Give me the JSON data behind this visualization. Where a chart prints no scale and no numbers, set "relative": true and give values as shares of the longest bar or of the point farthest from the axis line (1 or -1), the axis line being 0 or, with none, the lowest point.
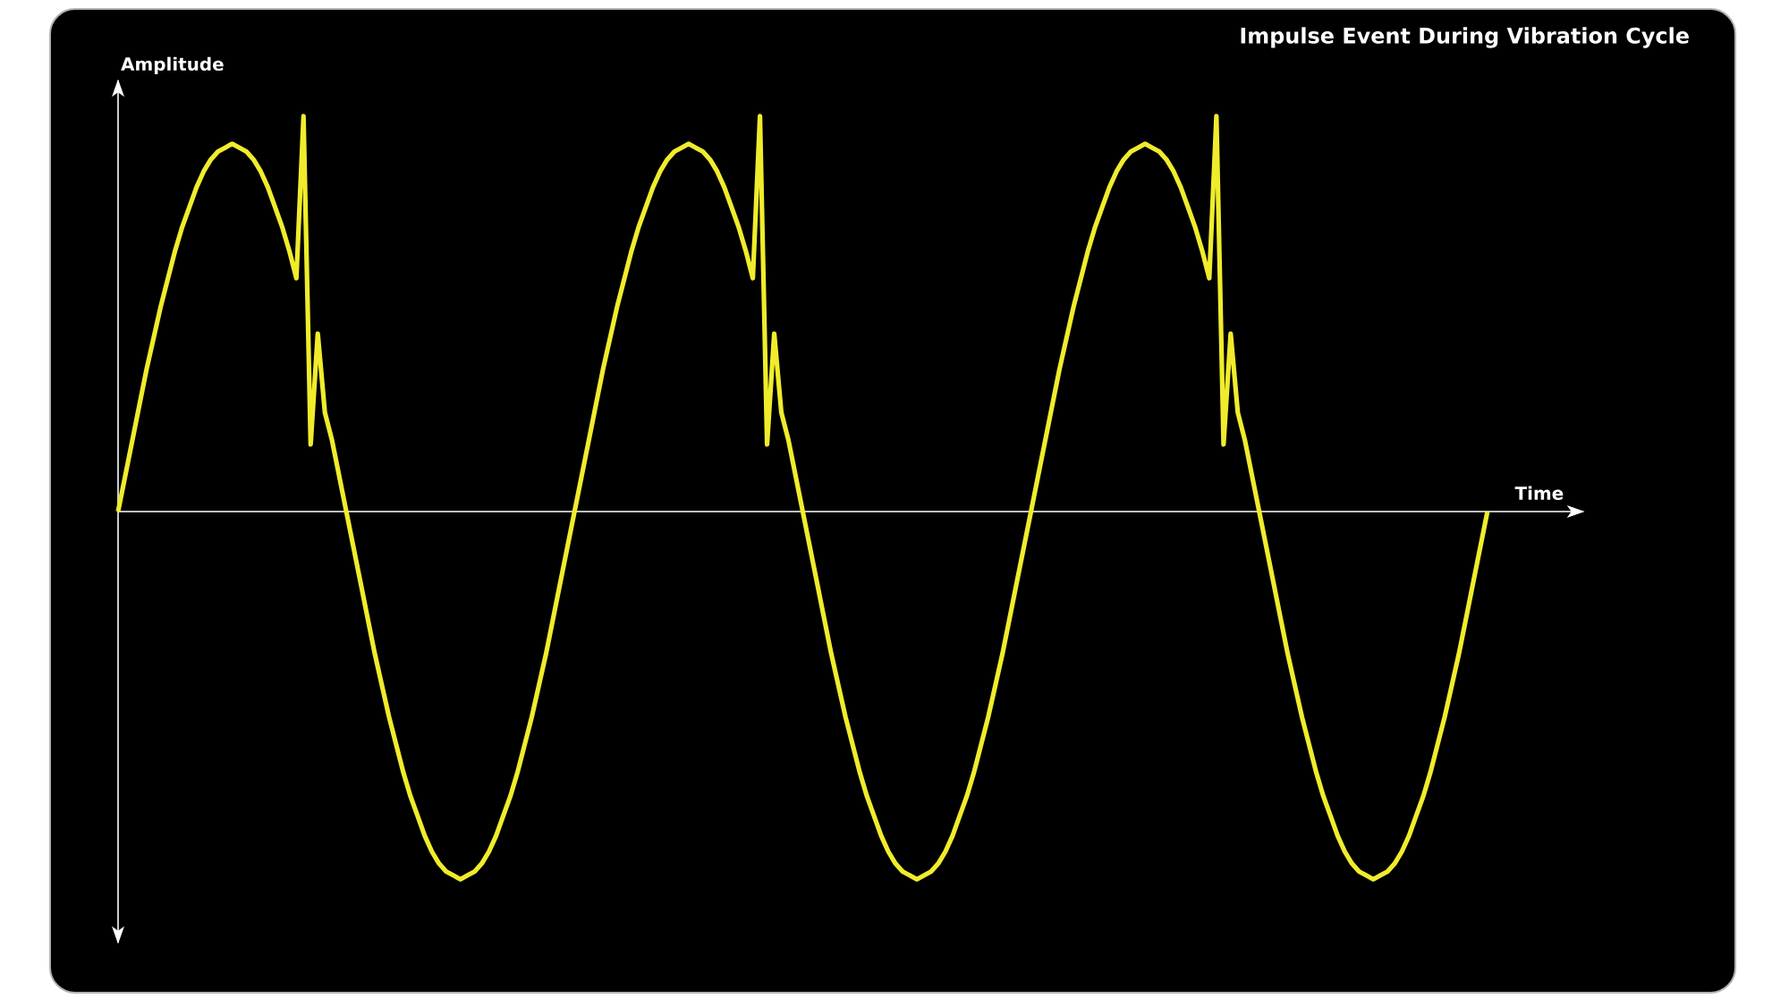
{
  "chart_data": {
    "type": "line",
    "relative": true,
    "title": "Impulse Event During Vibration Cycle",
    "xlabel": "Time",
    "ylabel": "Amplitude",
    "color": "#f0ec2c",
    "categories": [
      null,
      null,
      null,
      null,
      null,
      null,
      null,
      null,
      null,
      null,
      null,
      null,
      null,
      null,
      null,
      null,
      null,
      null,
      null,
      null,
      null,
      null,
      null,
      null,
      null,
      null,
      null,
      null,
      null,
      null,
      null,
      null,
      null,
      null,
      null,
      null,
      null,
      null,
      null,
      null,
      null,
      null,
      null,
      null,
      null,
      null,
      null,
      null,
      null,
      null,
      null,
      null,
      null,
      null,
      null,
      null,
      null,
      null,
      null,
      null,
      null,
      null,
      null,
      null,
      null,
      null,
      null,
      null,
      null,
      null,
      null,
      null,
      null,
      null,
      null,
      null,
      null,
      null,
      null,
      null,
      null,
      null,
      null,
      null,
      null,
      null,
      null,
      null,
      null,
      null,
      null,
      null,
      null,
      null,
      null,
      null,
      null,
      null,
      null,
      null,
      null,
      null,
      null,
      null,
      null,
      null,
      null,
      null,
      null,
      null,
      null,
      null,
      null,
      null,
      null,
      null,
      null,
      null,
      null,
      null,
      null,
      null,
      null,
      null,
      null,
      null,
      null,
      null,
      null,
      null,
      null,
      null,
      null,
      null,
      null,
      null,
      null,
      null,
      null,
      null,
      null,
      null,
      null,
      null,
      null,
      null,
      null,
      null,
      null,
      null,
      null,
      null,
      null,
      null,
      null,
      null,
      null,
      null,
      null,
      null,
      null,
      null,
      null,
      null,
      null,
      null,
      null,
      null,
      null,
      null,
      null,
      null,
      null,
      null,
      null,
      null,
      null,
      null,
      null,
      null,
      null,
      null,
      null,
      null,
      null,
      null,
      null,
      null,
      null,
      null,
      null,
      null,
      null
    ],
    "values": [
      0,
      0.09,
      0.18,
      0.27,
      0.36,
      0.44,
      0.52,
      0.59,
      0.66,
      0.72,
      0.77,
      0.82,
      0.86,
      0.89,
      0.91,
      0.92,
      0.93,
      0.92,
      0.91,
      0.89,
      0.86,
      0.82,
      0.77,
      0.72,
      0.66,
      0.59,
      1,
      0.17,
      0.45,
      0.25,
      0.18,
      0.09,
      0,
      -0.09,
      -0.18,
      -0.27,
      -0.36,
      -0.44,
      -0.52,
      -0.59,
      -0.66,
      -0.72,
      -0.77,
      -0.82,
      -0.86,
      -0.89,
      -0.91,
      -0.92,
      -0.93,
      -0.92,
      -0.91,
      -0.89,
      -0.86,
      -0.82,
      -0.77,
      -0.72,
      -0.66,
      -0.59,
      -0.52,
      -0.44,
      -0.36,
      -0.27,
      -0.18,
      -0.09,
      0,
      0.09,
      0.18,
      0.27,
      0.36,
      0.44,
      0.52,
      0.59,
      0.66,
      0.72,
      0.77,
      0.82,
      0.86,
      0.89,
      0.91,
      0.92,
      0.93,
      0.92,
      0.91,
      0.89,
      0.86,
      0.82,
      0.77,
      0.72,
      0.66,
      0.59,
      1,
      0.17,
      0.45,
      0.25,
      0.18,
      0.09,
      0,
      -0.09,
      -0.18,
      -0.27,
      -0.36,
      -0.44,
      -0.52,
      -0.59,
      -0.66,
      -0.72,
      -0.77,
      -0.82,
      -0.86,
      -0.89,
      -0.91,
      -0.92,
      -0.93,
      -0.92,
      -0.91,
      -0.89,
      -0.86,
      -0.82,
      -0.77,
      -0.72,
      -0.66,
      -0.59,
      -0.52,
      -0.44,
      -0.36,
      -0.27,
      -0.18,
      -0.09,
      0,
      0.09,
      0.18,
      0.27,
      0.36,
      0.44,
      0.52,
      0.59,
      0.66,
      0.72,
      0.77,
      0.82,
      0.86,
      0.89,
      0.91,
      0.92,
      0.93,
      0.92,
      0.91,
      0.89,
      0.86,
      0.82,
      0.77,
      0.72,
      0.66,
      0.59,
      1,
      0.17,
      0.45,
      0.25,
      0.18,
      0.09,
      0,
      -0.09,
      -0.18,
      -0.27,
      -0.36,
      -0.44,
      -0.52,
      -0.59,
      -0.66,
      -0.72,
      -0.77,
      -0.82,
      -0.86,
      -0.89,
      -0.91,
      -0.92,
      -0.93,
      -0.92,
      -0.91,
      -0.89,
      -0.86,
      -0.82,
      -0.77,
      -0.72,
      -0.66,
      -0.59,
      -0.52,
      -0.44,
      -0.36,
      -0.27,
      -0.18,
      -0.09,
      0
    ]
  }
}
